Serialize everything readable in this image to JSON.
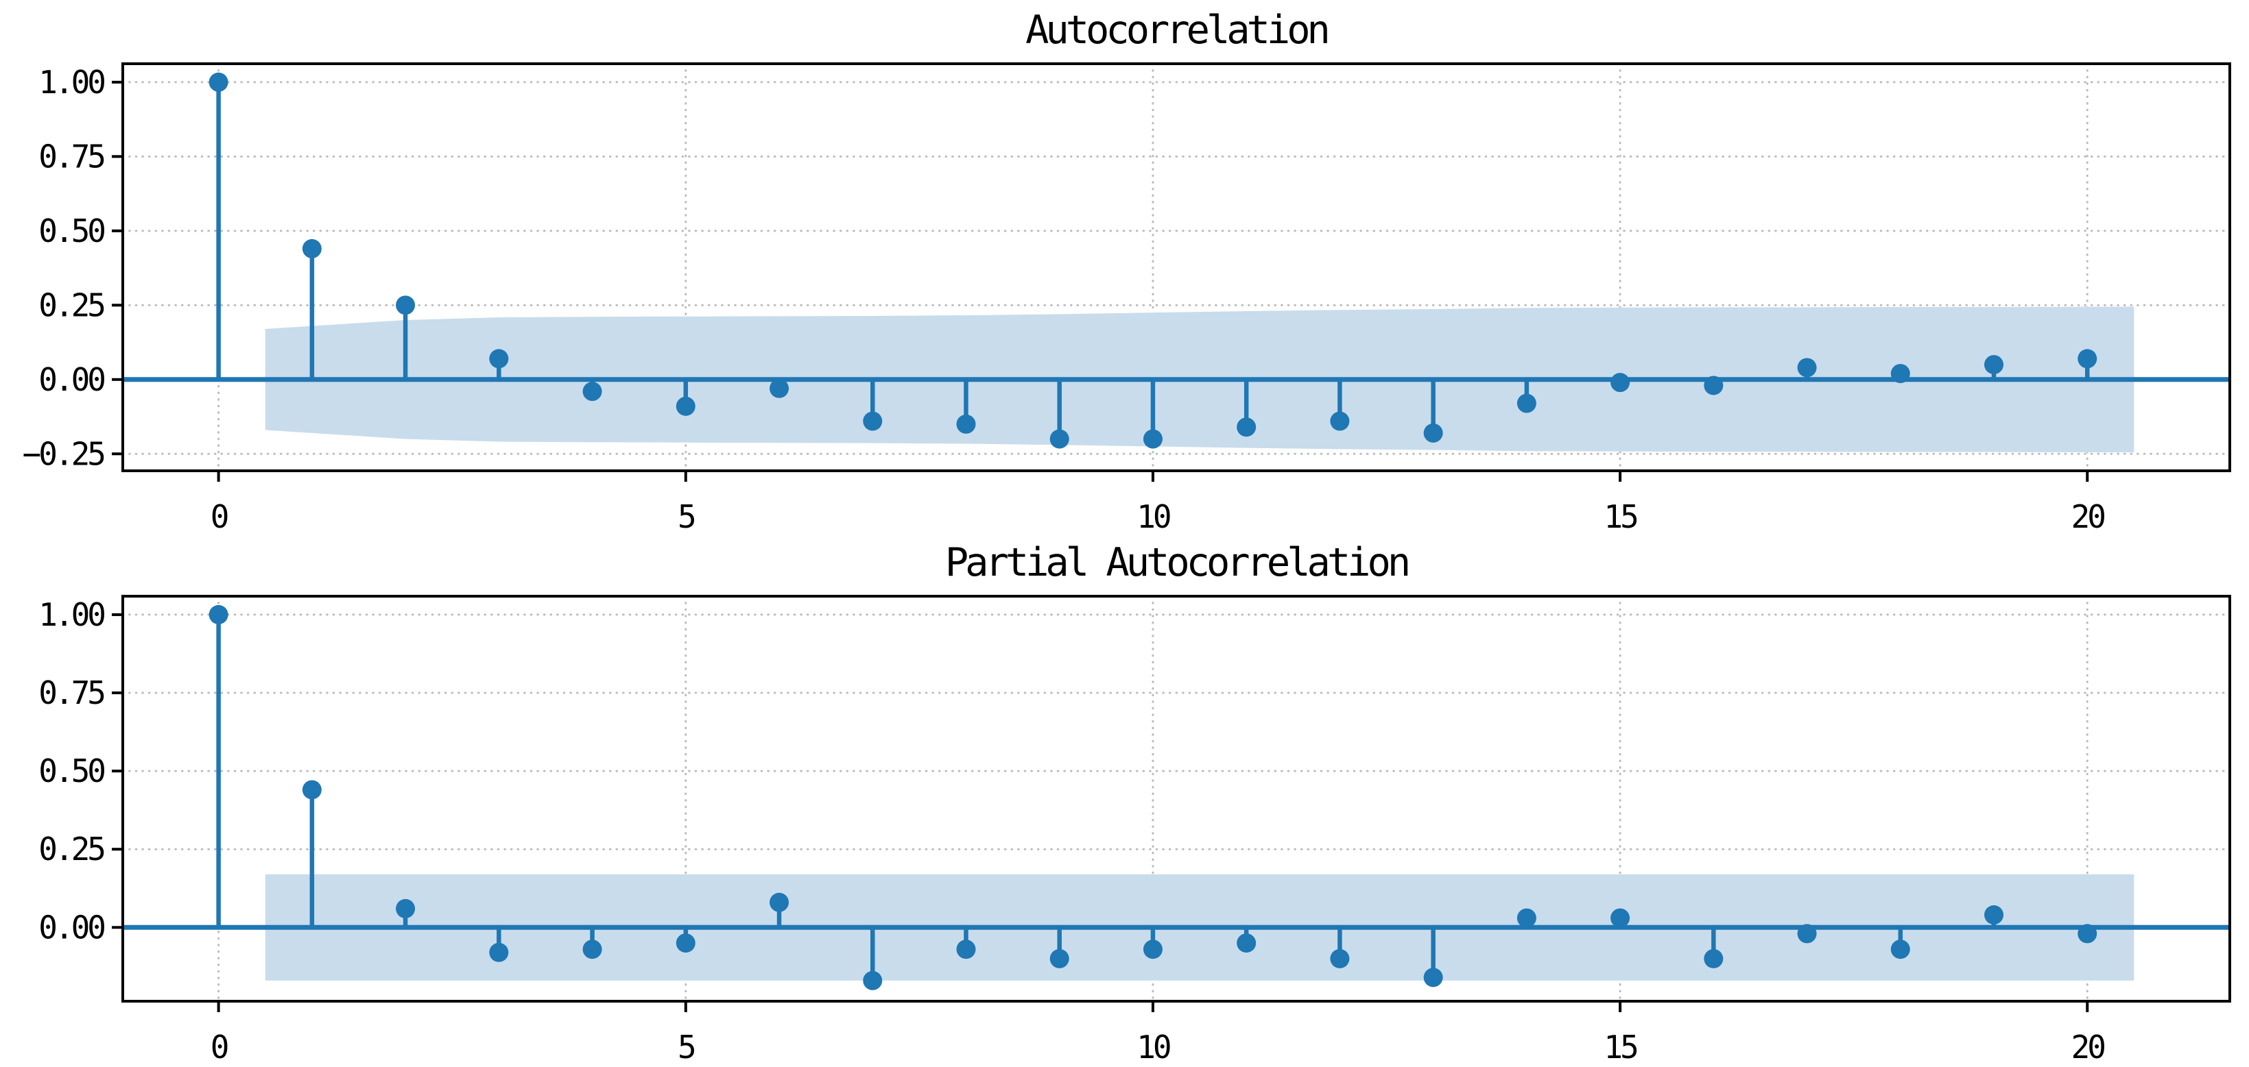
{
  "colors": {
    "accent": "#1f77b4",
    "band_fill": "#c9dcec",
    "grid": "#bbbbbb",
    "axis": "#000000",
    "background": "#ffffff"
  },
  "chart_data": [
    {
      "type": "stem",
      "title": "Autocorrelation",
      "x": [
        0,
        1,
        2,
        3,
        4,
        5,
        6,
        7,
        8,
        9,
        10,
        11,
        12,
        13,
        14,
        15,
        16,
        17,
        18,
        19,
        20
      ],
      "values": [
        1.0,
        0.44,
        0.25,
        0.07,
        -0.04,
        -0.09,
        -0.03,
        -0.14,
        -0.15,
        -0.2,
        -0.2,
        -0.16,
        -0.14,
        -0.18,
        -0.08,
        -0.01,
        -0.02,
        0.04,
        0.02,
        0.05,
        0.07
      ],
      "confidence_band": {
        "centered_on": 0,
        "x": [
          0.5,
          2,
          3,
          4,
          5,
          6,
          7,
          8,
          9,
          10,
          11,
          12,
          13,
          14,
          15,
          16,
          17,
          18,
          19,
          20.5
        ],
        "half_width": [
          0.17,
          0.2,
          0.209,
          0.211,
          0.212,
          0.213,
          0.214,
          0.216,
          0.22,
          0.225,
          0.23,
          0.234,
          0.237,
          0.241,
          0.242,
          0.243,
          0.243,
          0.244,
          0.244,
          0.245
        ]
      },
      "xlim": [
        -1.025,
        21.525
      ],
      "ylim": [
        -0.307,
        1.062
      ],
      "xticks": {
        "values": [
          0,
          5,
          10,
          15,
          20
        ],
        "labels": [
          "0",
          "5",
          "10",
          "15",
          "20"
        ]
      },
      "yticks": {
        "values": [
          1.0,
          0.75,
          0.5,
          0.25,
          0.0,
          -0.25
        ],
        "labels": [
          "1.00",
          "0.75",
          "0.50",
          "0.25",
          "0.00",
          "−0.25"
        ]
      },
      "grid": true
    },
    {
      "type": "stem",
      "title": "Partial Autocorrelation",
      "x": [
        0,
        1,
        2,
        3,
        4,
        5,
        6,
        7,
        8,
        9,
        10,
        11,
        12,
        13,
        14,
        15,
        16,
        17,
        18,
        19,
        20
      ],
      "values": [
        1.0,
        0.44,
        0.06,
        -0.08,
        -0.07,
        -0.05,
        0.08,
        -0.17,
        -0.07,
        -0.1,
        -0.07,
        -0.05,
        -0.1,
        -0.16,
        0.03,
        0.03,
        -0.1,
        -0.02,
        -0.07,
        0.04,
        -0.02
      ],
      "confidence_band": {
        "centered_on": 0,
        "x": [
          0.5,
          20.5
        ],
        "half_width": [
          0.17,
          0.17
        ]
      },
      "xlim": [
        -1.025,
        21.525
      ],
      "ylim": [
        -0.236,
        1.059
      ],
      "xticks": {
        "values": [
          0,
          5,
          10,
          15,
          20
        ],
        "labels": [
          "0",
          "5",
          "10",
          "15",
          "20"
        ]
      },
      "yticks": {
        "values": [
          1.0,
          0.75,
          0.5,
          0.25,
          0.0
        ],
        "labels": [
          "1.00",
          "0.75",
          "0.50",
          "0.25",
          "0.00"
        ]
      },
      "grid": true
    }
  ]
}
